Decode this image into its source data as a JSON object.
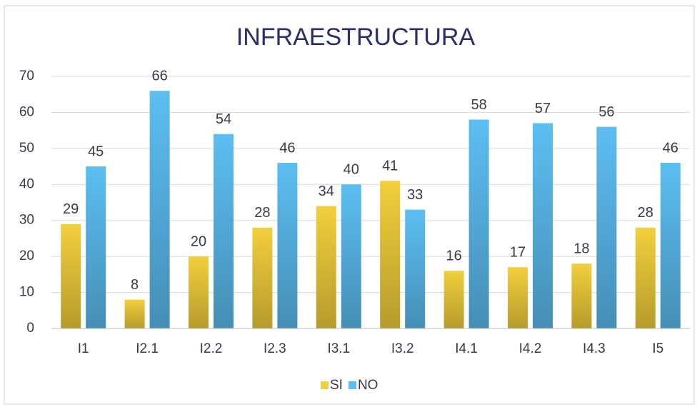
{
  "chart_data": {
    "type": "bar",
    "title": "INFRAESTRUCTURA",
    "categories": [
      "I1",
      "I2.1",
      "I2.2",
      "I2.3",
      "I3.1",
      "I3.2",
      "I4.1",
      "I4.2",
      "I4.3",
      "I5"
    ],
    "series": [
      {
        "name": "SI",
        "color": "#f2cf3c",
        "values": [
          29,
          8,
          20,
          28,
          34,
          41,
          16,
          17,
          18,
          28
        ]
      },
      {
        "name": "NO",
        "color": "#5cbef2",
        "values": [
          45,
          66,
          54,
          46,
          40,
          33,
          58,
          57,
          56,
          46
        ]
      }
    ],
    "ylim": [
      0,
      70
    ],
    "yticks": [
      0,
      10,
      20,
      30,
      40,
      50,
      60,
      70
    ],
    "grid": true,
    "legend": "bottom"
  }
}
